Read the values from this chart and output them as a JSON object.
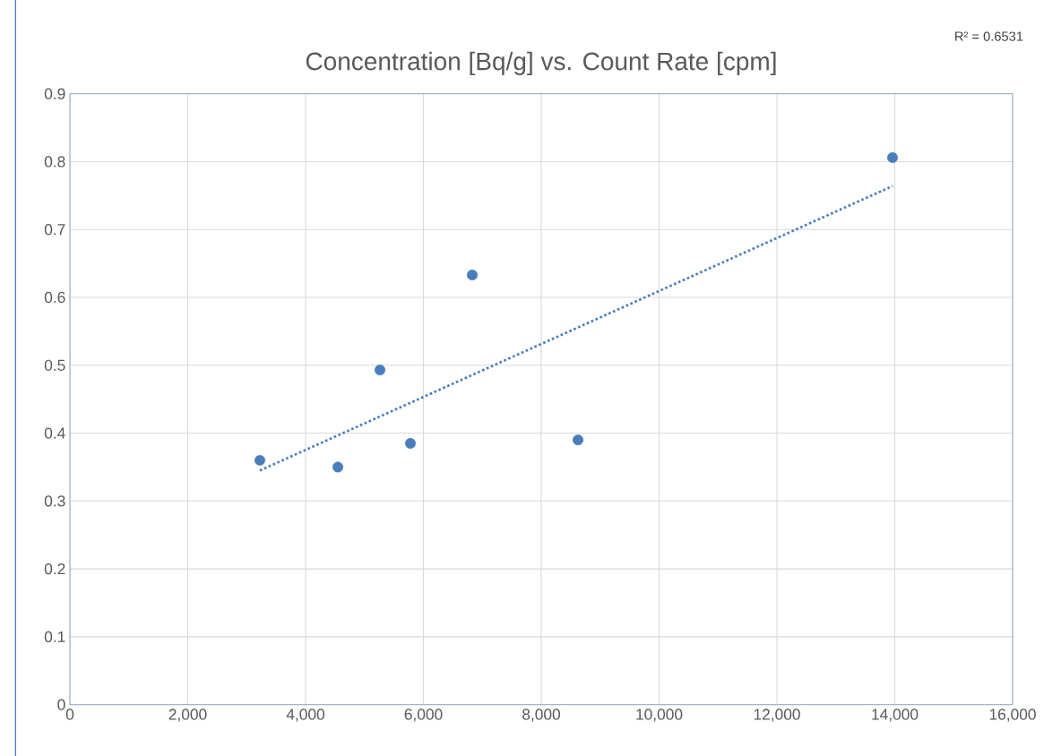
{
  "chart_data": {
    "type": "scatter",
    "title": "Concentration [Bq/g] vs. Count Rate [cpm]",
    "annotations": [
      "R² = 0.6531"
    ],
    "x": [
      3224,
      4548,
      5262,
      5779,
      6829,
      8624,
      13962
    ],
    "series": [
      {
        "color": "#4a7ebb",
        "marker": "circle",
        "values": [
          0.36,
          0.35,
          0.493,
          0.385,
          0.633,
          0.39,
          0.806
        ]
      },
      {
        "type": "line",
        "color": "#4a7ebb",
        "line_style": "dotted",
        "marker": "none",
        "x": [
          3224,
          13962
        ],
        "values": [
          0.345,
          0.764
        ]
      }
    ],
    "xlim": [
      0,
      16000
    ],
    "xticks": [
      0,
      {
        "value": 2000,
        "label": "2,000"
      },
      {
        "value": 4000,
        "label": "4,000"
      },
      {
        "value": 6000,
        "label": "6,000"
      },
      {
        "value": 8000,
        "label": "8,000"
      },
      {
        "value": 10000,
        "label": "10,000"
      },
      {
        "value": 12000,
        "label": "12,000"
      },
      {
        "value": 14000,
        "label": "14,000"
      },
      {
        "value": 16000,
        "label": "16,000"
      }
    ],
    "ylim": [
      0,
      0.9
    ],
    "yticks": [
      0,
      0.1,
      0.2,
      0.3,
      0.4,
      0.5,
      0.6,
      0.7,
      0.8,
      0.9
    ],
    "grid": true
  }
}
